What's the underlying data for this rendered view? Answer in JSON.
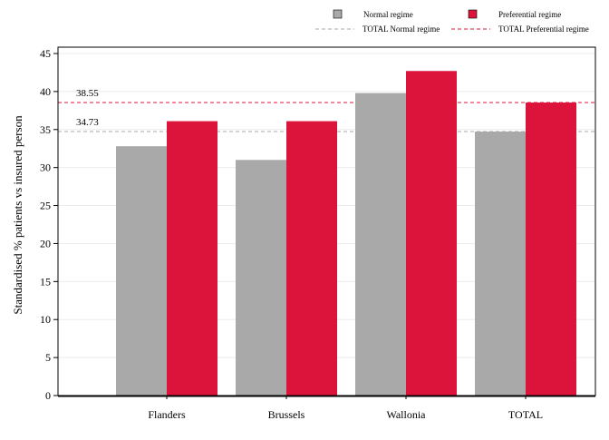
{
  "chart_data": {
    "type": "bar",
    "categories": [
      "Flanders",
      "Brussels",
      "Wallonia",
      "TOTAL"
    ],
    "series": [
      {
        "name": "Normal regime",
        "color": "#a9a9a9",
        "values": [
          32.8,
          31.0,
          39.8,
          34.73
        ]
      },
      {
        "name": "Preferential regime",
        "color": "#dc143c",
        "values": [
          36.1,
          36.1,
          42.7,
          38.55
        ]
      }
    ],
    "reference_lines": [
      {
        "name": "TOTAL Normal regime",
        "value": 34.73,
        "label": "34.73",
        "color": "#a9a9a9",
        "style": "dashed"
      },
      {
        "name": "TOTAL Preferential regime",
        "value": 38.55,
        "label": "38.55",
        "color": "#dc143c",
        "style": "dashed"
      }
    ],
    "title": "",
    "xlabel": "",
    "ylabel": "Standardised % patients vs insured person",
    "ylim": [
      0,
      45
    ],
    "yticks": [
      0,
      5,
      10,
      15,
      20,
      25,
      30,
      35,
      40,
      45
    ],
    "grid": true,
    "legend_position": "top-right"
  }
}
